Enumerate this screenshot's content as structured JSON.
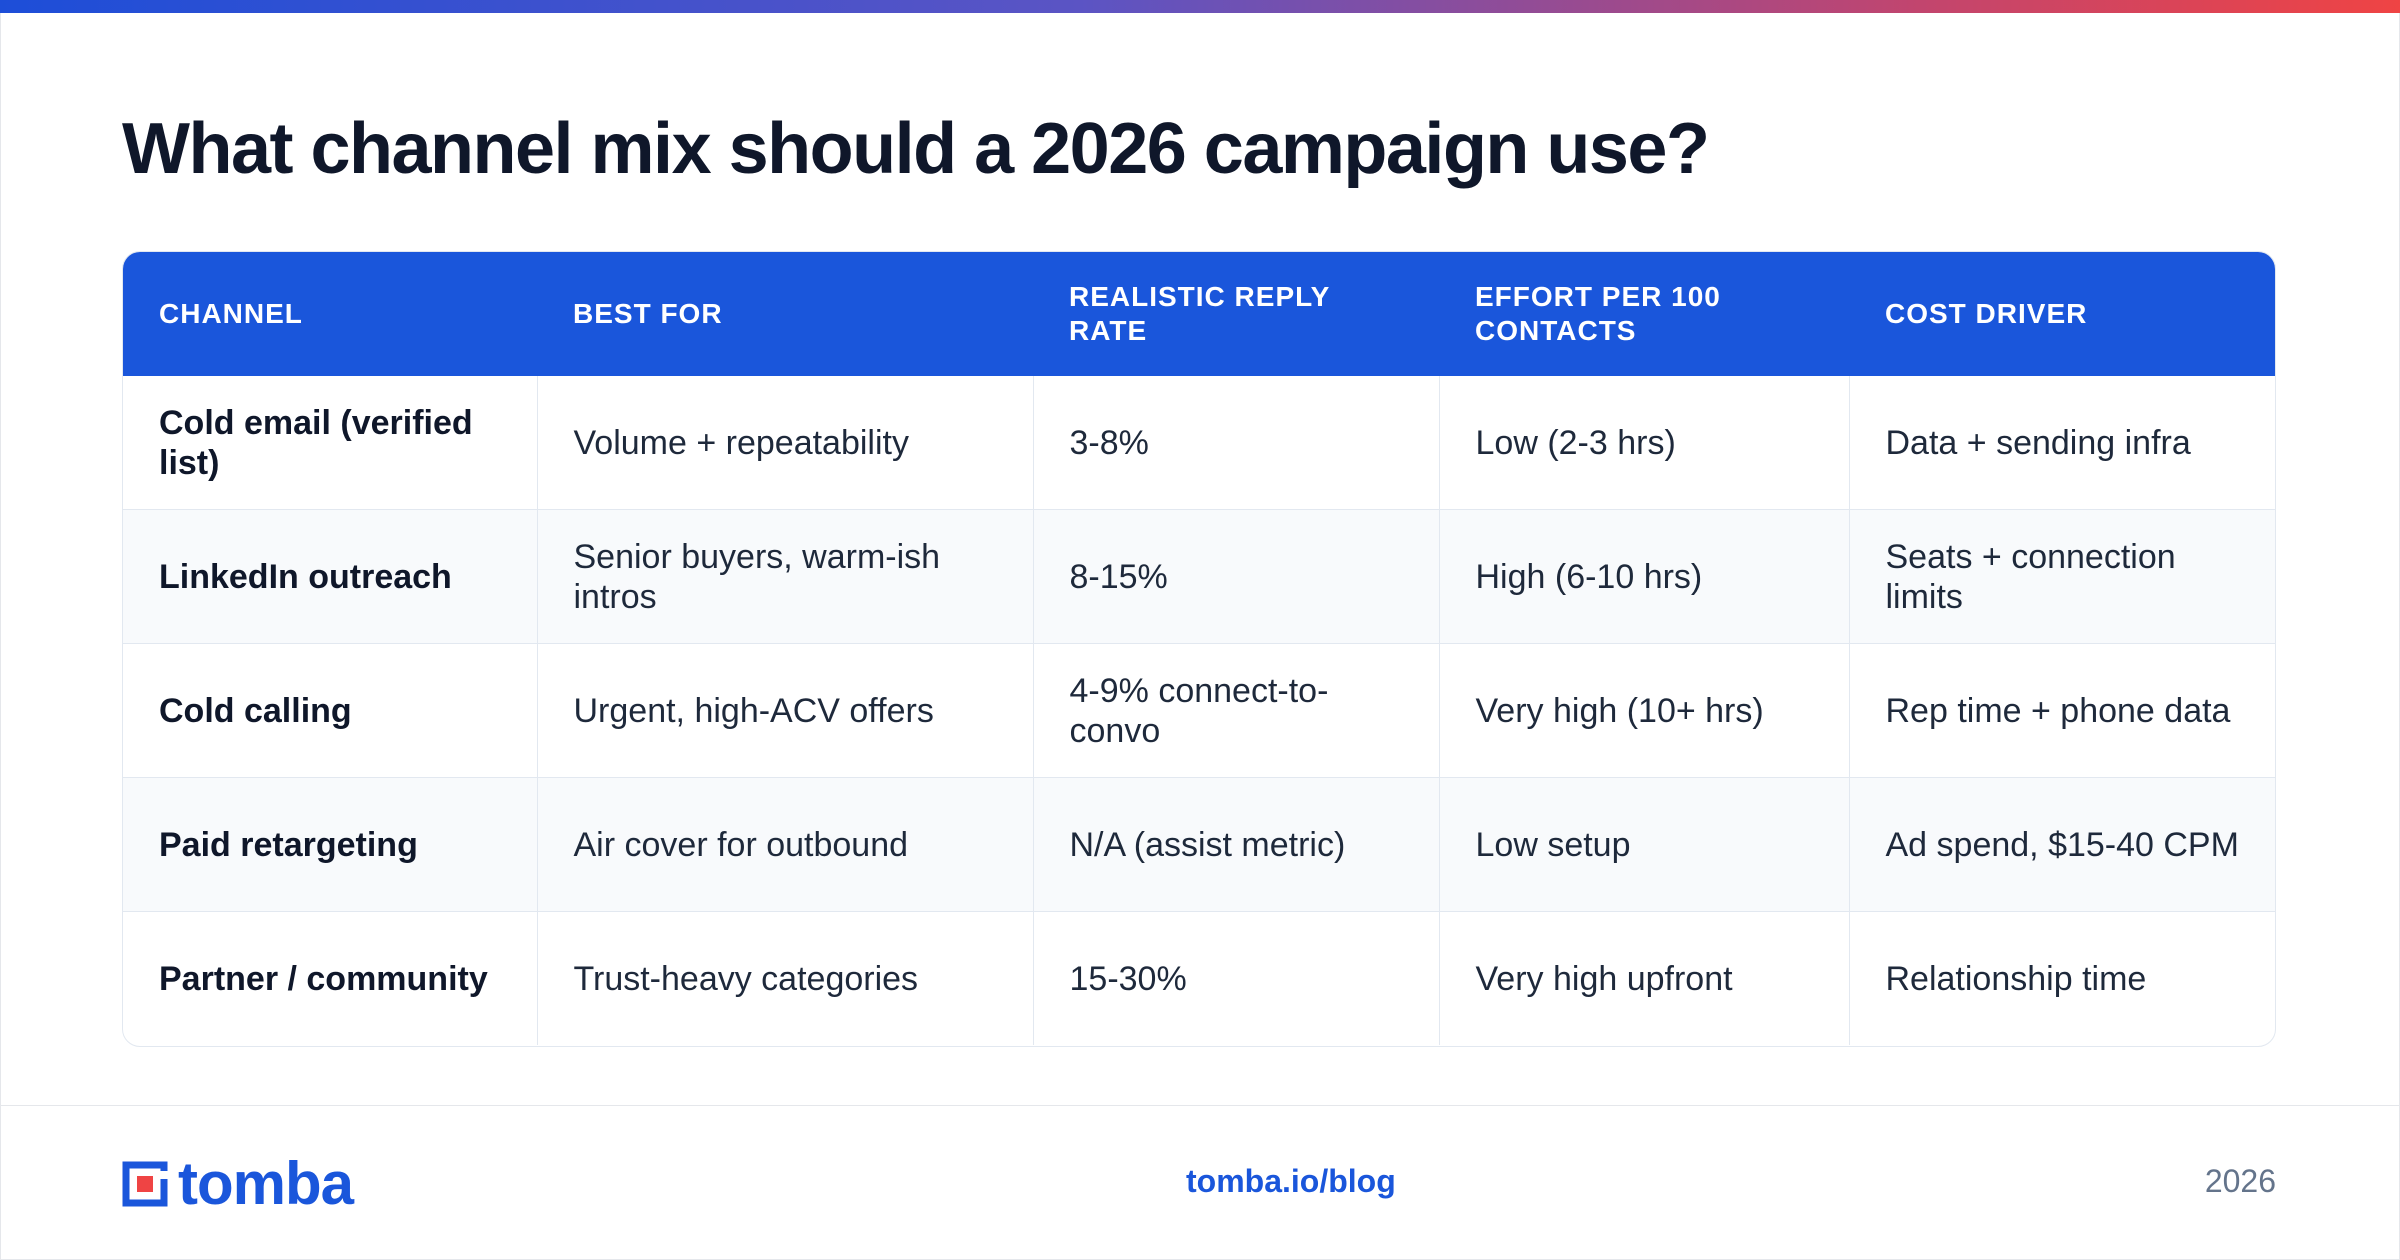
{
  "title": "What channel mix should a 2026 campaign use?",
  "table": {
    "headers": [
      "CHANNEL",
      "BEST FOR",
      "REALISTIC REPLY RATE",
      "EFFORT PER 100 CONTACTS",
      "COST DRIVER"
    ],
    "rows": [
      [
        "Cold email (verified list)",
        "Volume + repeatability",
        "3-8%",
        "Low (2-3 hrs)",
        "Data + sending infra"
      ],
      [
        "LinkedIn outreach",
        "Senior buyers, warm-ish intros",
        "8-15%",
        "High (6-10 hrs)",
        "Seats + connection limits"
      ],
      [
        "Cold calling",
        "Urgent, high-ACV offers",
        "4-9% connect-to-convo",
        "Very high (10+ hrs)",
        "Rep time + phone data"
      ],
      [
        "Paid retargeting",
        "Air cover for outbound",
        "N/A (assist metric)",
        "Low setup",
        "Ad spend, $15-40 CPM"
      ],
      [
        "Partner / community",
        "Trust-heavy categories",
        "15-30%",
        "Very high upfront",
        "Relationship time"
      ]
    ]
  },
  "footer": {
    "logo_text": "tomba",
    "url": "tomba.io/blog",
    "year": "2026"
  },
  "colors": {
    "accent": "#1a56db",
    "gradient_start": "#1d4ed8",
    "gradient_end": "#ef4444"
  }
}
